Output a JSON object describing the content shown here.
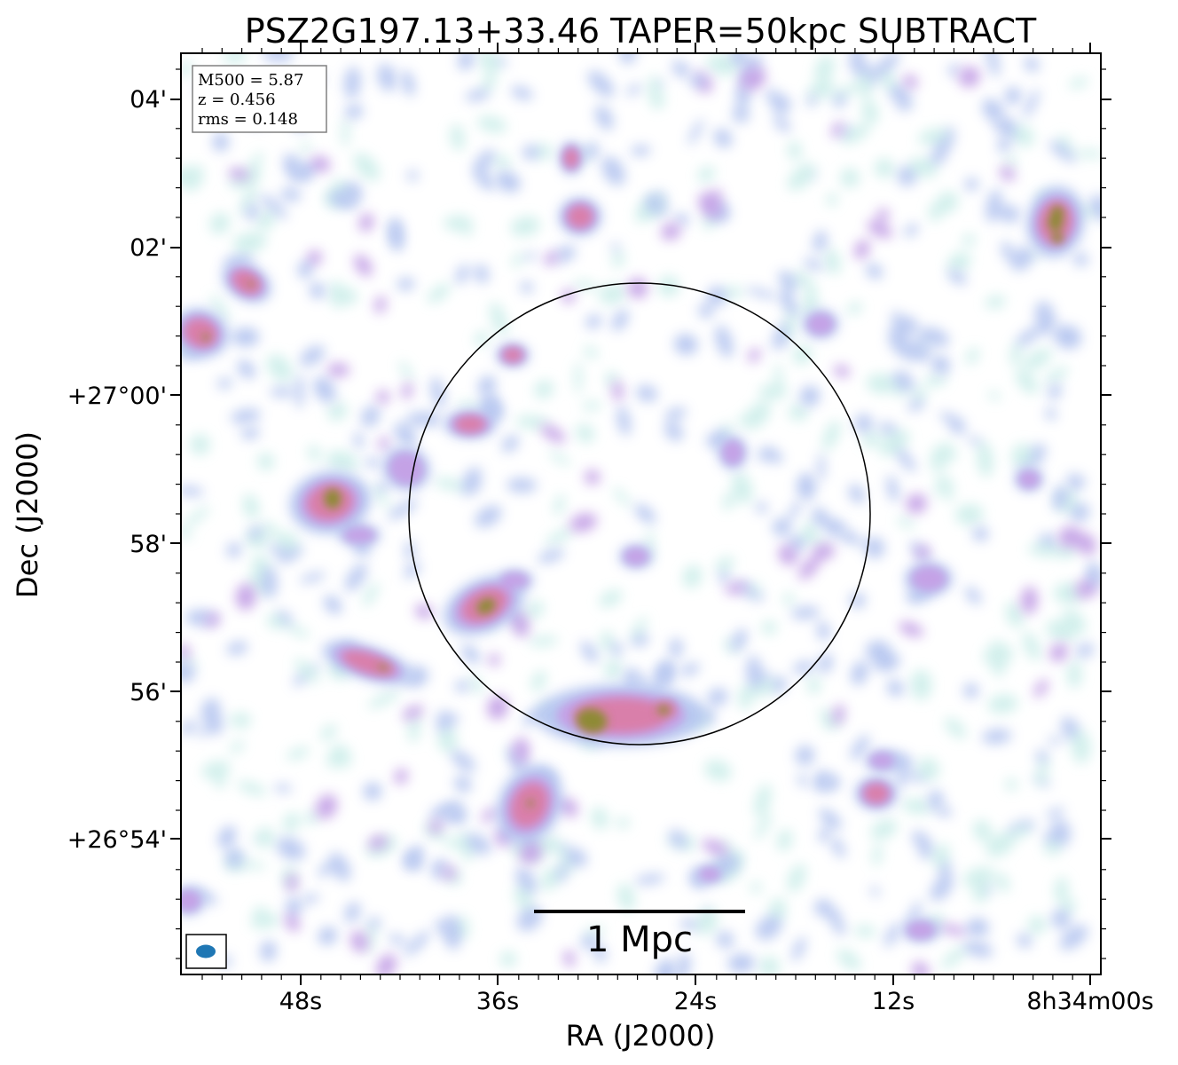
{
  "title": "PSZ2G197.13+33.46 TAPER=50kpc SUBTRACT",
  "info": {
    "m500": "M500 = 5.87",
    "z": "z = 0.456",
    "rms": "rms = 0.148"
  },
  "x_axis": {
    "label": "RA (J2000)",
    "ticks": [
      "48s",
      "36s",
      "24s",
      "12s",
      "8h34m00s"
    ]
  },
  "y_axis": {
    "label": "Dec (J2000)",
    "ticks": [
      "04'",
      "02'",
      "+27°00'",
      "58'",
      "56'",
      "+26°54'"
    ]
  },
  "scalebar": {
    "label": "1 Mpc"
  },
  "colors": {
    "faint": "#cdeeea",
    "low": "#b6c6f0",
    "mid": "#c4a2e6",
    "high": "#d97faa",
    "peak": "#8e8a36",
    "beam": "#1f77b4"
  }
}
